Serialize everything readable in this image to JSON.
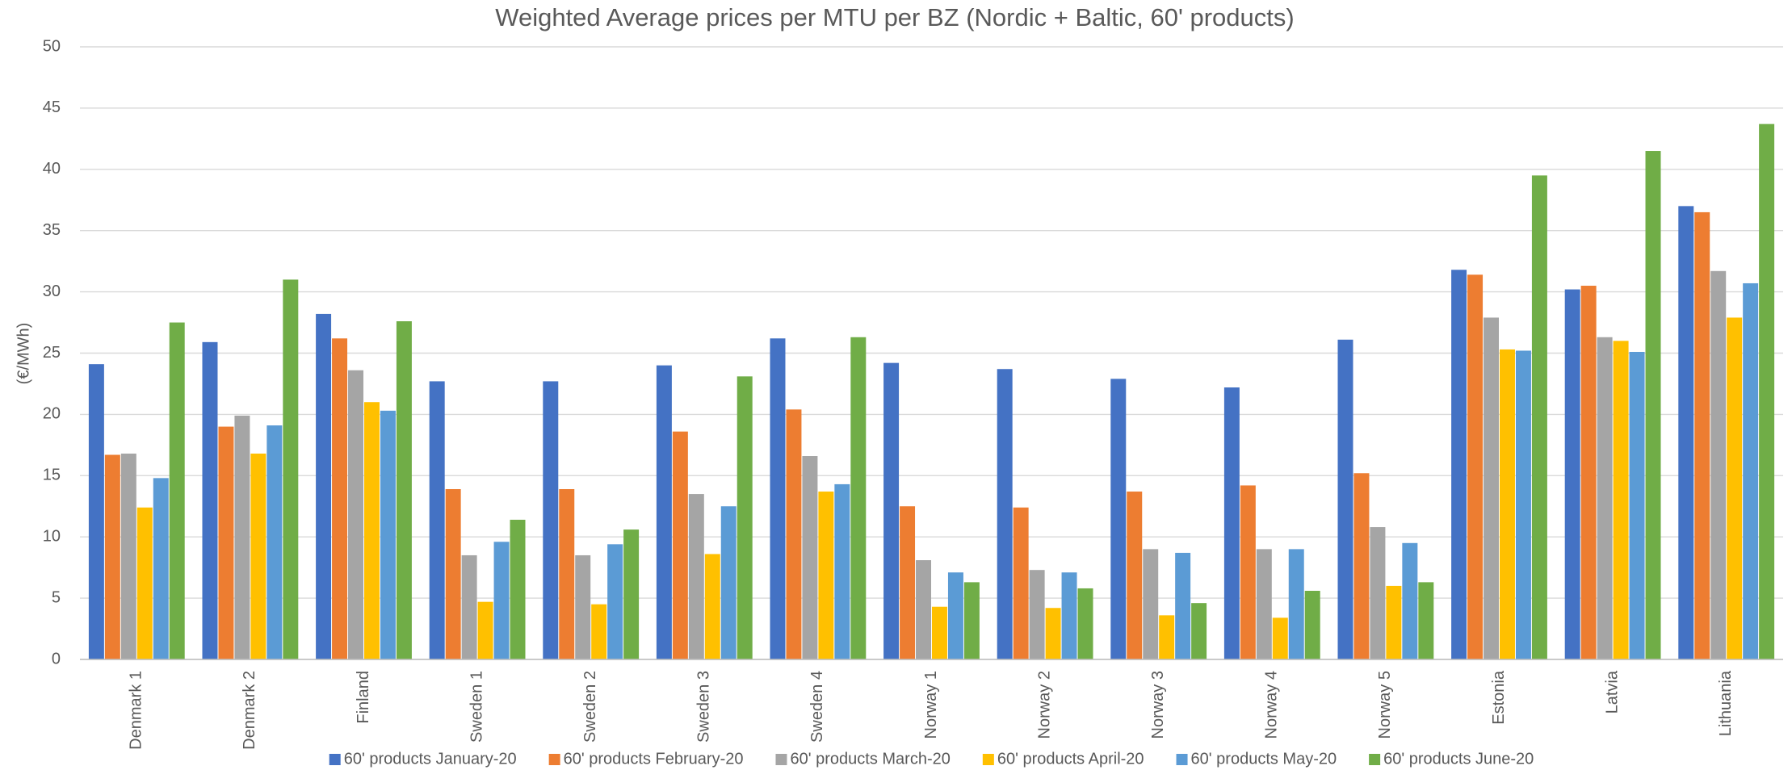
{
  "chart_data": {
    "type": "bar",
    "title": "Weighted Average prices per MTU per BZ (Nordic + Baltic,  60' products)",
    "y_label": "(€/MWh)",
    "categories": [
      "Denmark 1",
      "Denmark 2",
      "Finland",
      "Sweden 1",
      "Sweden 2",
      "Sweden 3",
      "Sweden 4",
      "Norway 1",
      "Norway 2",
      "Norway 3",
      "Norway 4",
      "Norway 5",
      "Estonia",
      "Latvia",
      "Lithuania"
    ],
    "series": [
      {
        "name": "60' products January-20",
        "color": "#4472c4",
        "values": [
          24.1,
          25.9,
          28.2,
          22.7,
          22.7,
          24.0,
          26.2,
          24.2,
          23.7,
          22.9,
          22.2,
          26.1,
          31.8,
          30.2,
          37.0
        ]
      },
      {
        "name": "60' products February-20",
        "color": "#ed7d31",
        "values": [
          16.7,
          19.0,
          26.2,
          13.9,
          13.9,
          18.6,
          20.4,
          12.5,
          12.4,
          13.7,
          14.2,
          15.2,
          31.4,
          30.5,
          36.5
        ]
      },
      {
        "name": "60' products March-20",
        "color": "#a5a5a5",
        "values": [
          16.8,
          19.9,
          23.6,
          8.5,
          8.5,
          13.5,
          16.6,
          8.1,
          7.3,
          9.0,
          9.0,
          10.8,
          27.9,
          26.3,
          31.7
        ]
      },
      {
        "name": "60' products April-20",
        "color": "#ffc000",
        "values": [
          12.4,
          16.8,
          21.0,
          4.7,
          4.5,
          8.6,
          13.7,
          4.3,
          4.2,
          3.6,
          3.4,
          6.0,
          25.3,
          26.0,
          27.9
        ]
      },
      {
        "name": "60' products May-20",
        "color": "#5b9bd5",
        "values": [
          14.8,
          19.1,
          20.3,
          9.6,
          9.4,
          12.5,
          14.3,
          7.1,
          7.1,
          8.7,
          9.0,
          9.5,
          25.2,
          25.1,
          30.7
        ]
      },
      {
        "name": "60' products June-20",
        "color": "#70ad47",
        "values": [
          27.5,
          31.0,
          27.6,
          11.4,
          10.6,
          23.1,
          26.3,
          6.3,
          5.8,
          4.6,
          5.6,
          6.3,
          39.5,
          41.5,
          43.7
        ]
      }
    ],
    "ylim": [
      0,
      50
    ],
    "yticks": [
      0,
      5,
      10,
      15,
      20,
      25,
      30,
      35,
      40,
      45,
      50
    ],
    "grid": true,
    "legend": "bottom"
  }
}
